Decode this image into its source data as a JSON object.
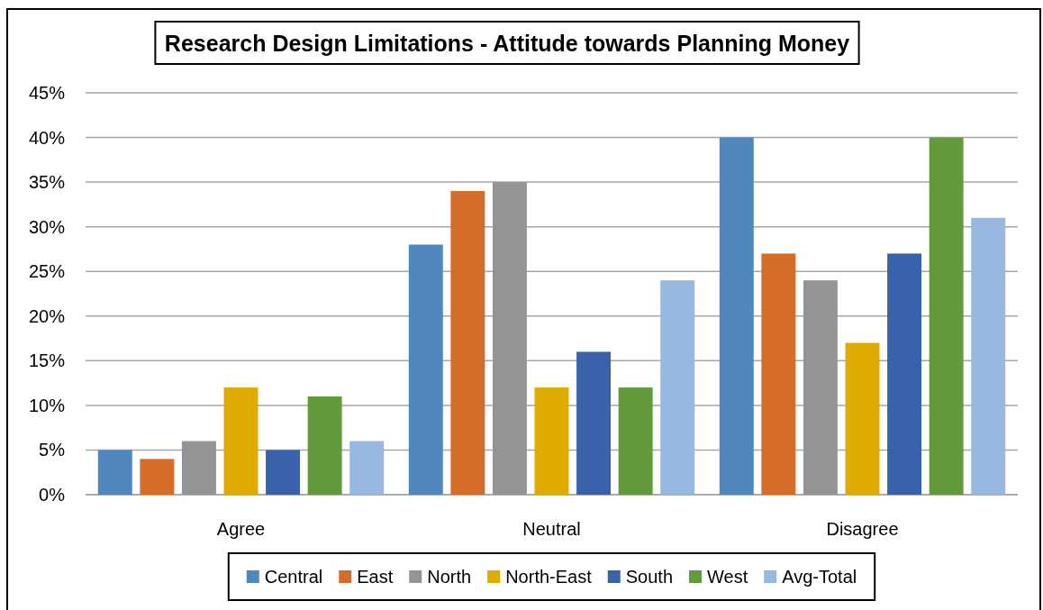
{
  "chart_data": {
    "type": "bar",
    "title": "Research Design Limitations - Attitude towards Planning Money",
    "categories": [
      "Agree",
      "Neutral",
      "Disagree"
    ],
    "series": [
      {
        "name": "Central",
        "color": "#5087bd",
        "values": [
          5,
          28,
          40
        ]
      },
      {
        "name": "East",
        "color": "#d46d2a",
        "values": [
          4,
          34,
          27
        ]
      },
      {
        "name": "North",
        "color": "#949494",
        "values": [
          6,
          35,
          24
        ]
      },
      {
        "name": "North-East",
        "color": "#e0ab00",
        "values": [
          12,
          12,
          17
        ]
      },
      {
        "name": "South",
        "color": "#3a62ab",
        "values": [
          5,
          16,
          27
        ]
      },
      {
        "name": "West",
        "color": "#629a3c",
        "values": [
          11,
          12,
          40
        ]
      },
      {
        "name": "Avg-Total",
        "color": "#98b8df",
        "values": [
          6,
          24,
          31
        ]
      }
    ],
    "ylim": [
      0,
      45
    ],
    "yticks": [
      {
        "value": 0,
        "label": "0%"
      },
      {
        "value": 5,
        "label": "5%"
      },
      {
        "value": 10,
        "label": "10%"
      },
      {
        "value": 15,
        "label": "15%"
      },
      {
        "value": 20,
        "label": "20%"
      },
      {
        "value": 25,
        "label": "25%"
      },
      {
        "value": 30,
        "label": "30%"
      },
      {
        "value": 35,
        "label": "35%"
      },
      {
        "value": 40,
        "label": "40%"
      },
      {
        "value": 45,
        "label": "45%"
      }
    ],
    "grid": "y",
    "legend": "bottom"
  }
}
